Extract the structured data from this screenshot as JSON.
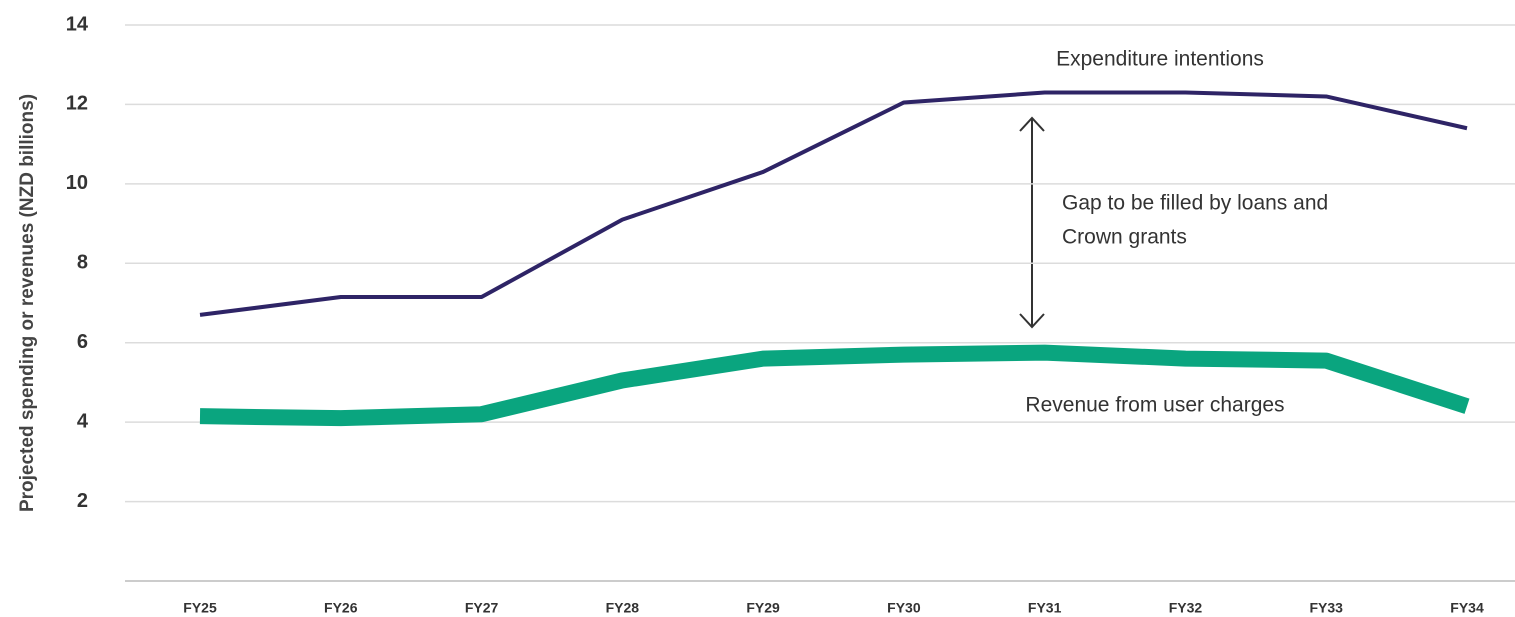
{
  "chart_data": {
    "type": "line",
    "y_label": "Projected spending or revenues (NZD billions)",
    "categories": [
      "FY25",
      "FY26",
      "FY27",
      "FY28",
      "FY29",
      "FY30",
      "FY31",
      "FY32",
      "FY33",
      "FY34"
    ],
    "series": [
      {
        "name": "Expenditure intentions",
        "color": "#2e2466",
        "values": [
          6.7,
          7.15,
          7.15,
          9.1,
          10.3,
          12.05,
          12.3,
          12.3,
          12.2,
          11.4
        ]
      },
      {
        "name": "Revenue from user charges",
        "color": "#0aa57f",
        "values": [
          4.15,
          4.1,
          4.2,
          5.05,
          5.6,
          5.7,
          5.75,
          5.6,
          5.55,
          4.4
        ]
      }
    ],
    "annotation": [
      "Gap to be filled by loans and",
      "Crown grants"
    ],
    "ylim": [
      0,
      14
    ],
    "yticks": [
      2,
      4,
      6,
      8,
      10,
      12,
      14
    ],
    "grid": true
  }
}
